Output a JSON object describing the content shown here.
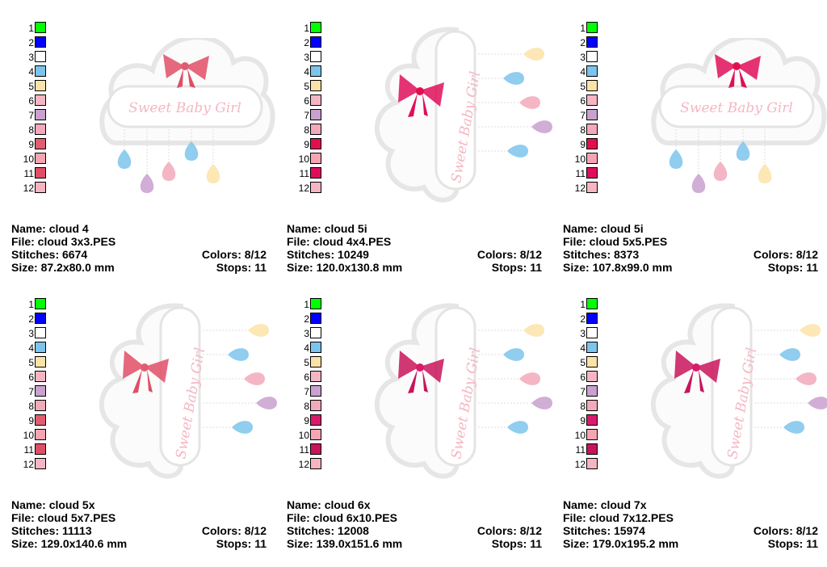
{
  "labels": {
    "name": "Name:",
    "file": "File:",
    "stitches": "Stitches:",
    "size": "Size:",
    "colors": "Colors:",
    "stops": "Stops:"
  },
  "design_text": "Sweet Baby Girl",
  "palette_numbers": [
    "1",
    "2",
    "3",
    "4",
    "5",
    "6",
    "7",
    "8",
    "9",
    "10",
    "11",
    "12"
  ],
  "cards": [
    {
      "name": "cloud 4",
      "file": "cloud 3x3.PES",
      "stitches": "6674",
      "size": "87.2x80.0 mm",
      "colors": "8/12",
      "stops": "11",
      "palette": [
        "#00ff00",
        "#0000ff",
        "#ffffff",
        "#7cc4ec",
        "#fbe3a8",
        "#f5b6c3",
        "#c9a0cf",
        "#f2a9ba",
        "#e05d70",
        "#f5a5b2",
        "#e04e65",
        "#f5b5c2"
      ]
    },
    {
      "name": "cloud 5i",
      "file": "cloud 4x4.PES",
      "stitches": "10249",
      "size": "120.0x130.8 mm",
      "colors": "8/12",
      "stops": "11",
      "palette": [
        "#00ff00",
        "#0000ff",
        "#ffffff",
        "#7cc4ec",
        "#fbe3a8",
        "#f5b6c3",
        "#c9a0cf",
        "#f2a9ba",
        "#e0104f",
        "#f5a5b2",
        "#e00e5a",
        "#f5b5c2"
      ]
    },
    {
      "name": "cloud 5i",
      "file": "cloud 5x5.PES",
      "stitches": "8373",
      "size": "107.8x99.0 mm",
      "colors": "8/12",
      "stops": "11",
      "palette": [
        "#00ff00",
        "#0000ff",
        "#ffffff",
        "#7cc4ec",
        "#fbe3a8",
        "#f5b6c3",
        "#c9a0cf",
        "#f2a9ba",
        "#e0104f",
        "#f5a5b2",
        "#e00e5a",
        "#f5b5c2"
      ]
    },
    {
      "name": "cloud 5x",
      "file": "cloud 5x7.PES",
      "stitches": "11113",
      "size": "129.0x140.6 mm",
      "colors": "8/12",
      "stops": "11",
      "palette": [
        "#00ff00",
        "#0000ff",
        "#ffffff",
        "#7cc4ec",
        "#fbe3a8",
        "#f5b6c3",
        "#c9a0cf",
        "#f2a9ba",
        "#e05d70",
        "#f5a5b2",
        "#e04e65",
        "#f5b5c2"
      ]
    },
    {
      "name": "cloud 6x",
      "file": "cloud 6x10.PES",
      "stitches": "12008",
      "size": "139.0x151.6 mm",
      "colors": "8/12",
      "stops": "11",
      "palette": [
        "#00ff00",
        "#0000ff",
        "#ffffff",
        "#7cc4ec",
        "#fbe3a8",
        "#f5b6c3",
        "#c9a0cf",
        "#f2a9ba",
        "#d81b6a",
        "#f5a5b2",
        "#c8145a",
        "#f5b5c2"
      ]
    },
    {
      "name": "cloud 7x",
      "file": "cloud 7x12.PES",
      "stitches": "15974",
      "size": "179.0x195.2 mm",
      "colors": "8/12",
      "stops": "11",
      "palette": [
        "#00ff00",
        "#0000ff",
        "#ffffff",
        "#7cc4ec",
        "#fbe3a8",
        "#f5b6c3",
        "#c9a0cf",
        "#f2a9ba",
        "#d81b6a",
        "#f5a5b2",
        "#c8145a",
        "#f5b5c2"
      ]
    }
  ]
}
